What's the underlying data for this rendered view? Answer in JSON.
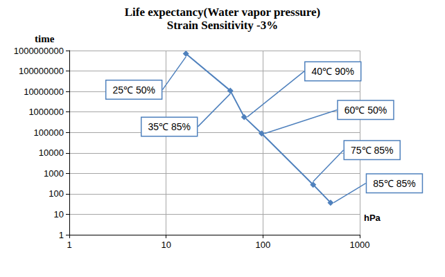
{
  "chart_data": {
    "type": "line",
    "title": "Life expectancy(Water vapor pressure)",
    "subtitle": "Strain Sensitivity -3%",
    "x_label": "hPa",
    "y_label": "time",
    "x": [
      16,
      46,
      64,
      97,
      330,
      500
    ],
    "values": [
      700000000,
      11000000,
      570000,
      89000,
      280,
      37
    ],
    "annotations": [
      "25℃ 50%",
      "35℃ 85%",
      "40℃ 90%",
      "60℃ 50%",
      "75℃ 85%",
      "85℃ 85%"
    ],
    "color": "#4f81bd",
    "marker": "diamond",
    "log": true,
    "grid": true,
    "xlim": [
      1,
      1000
    ],
    "xticks": [
      1,
      10,
      100,
      1000
    ],
    "ylim": [
      1,
      1000000000
    ],
    "yticks": [
      1,
      10,
      100,
      1000,
      10000,
      100000,
      1000000,
      10000000,
      100000000,
      1000000000
    ]
  }
}
